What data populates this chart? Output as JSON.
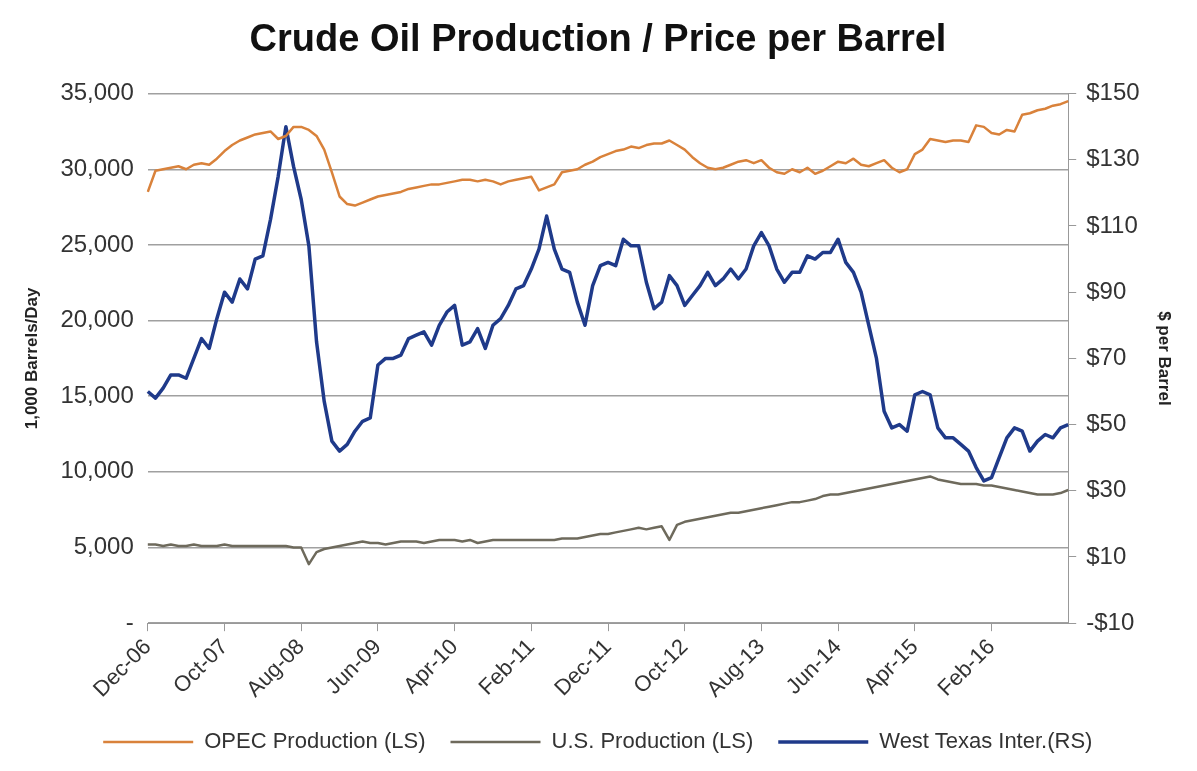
{
  "chart_data": {
    "type": "line",
    "title": "Crude Oil Production / Price per Barrel",
    "ylabel": "1,000 Barrels/Day",
    "y2label": "$ per Barrel",
    "categories": [
      "Dec-06",
      null,
      null,
      null,
      null,
      null,
      null,
      null,
      null,
      null,
      "Oct-07",
      null,
      null,
      null,
      null,
      null,
      null,
      null,
      null,
      null,
      "Aug-08",
      null,
      null,
      null,
      null,
      null,
      null,
      null,
      null,
      null,
      "Jun-09",
      null,
      null,
      null,
      null,
      null,
      null,
      null,
      null,
      null,
      "Apr-10",
      null,
      null,
      null,
      null,
      null,
      null,
      null,
      null,
      null,
      "Feb-11",
      null,
      null,
      null,
      null,
      null,
      null,
      null,
      null,
      null,
      "Dec-11",
      null,
      null,
      null,
      null,
      null,
      null,
      null,
      null,
      null,
      "Oct-12",
      null,
      null,
      null,
      null,
      null,
      null,
      null,
      null,
      null,
      "Aug-13",
      null,
      null,
      null,
      null,
      null,
      null,
      null,
      null,
      null,
      "Jun-14",
      null,
      null,
      null,
      null,
      null,
      null,
      null,
      null,
      null,
      "Apr-15",
      null,
      null,
      null,
      null,
      null,
      null,
      null,
      null,
      null,
      "Feb-16",
      null,
      null,
      null,
      null,
      null,
      null,
      null,
      null,
      null,
      null
    ],
    "series": [
      {
        "name": "OPEC Production (LS)",
        "color": "#d9823b",
        "values": [
          28500,
          29900,
          30000,
          30100,
          30200,
          30000,
          30300,
          30400,
          30300,
          30700,
          31200,
          31600,
          31900,
          32100,
          32300,
          32400,
          32500,
          32000,
          32200,
          32800,
          32800,
          32600,
          32200,
          31300,
          29800,
          28200,
          27700,
          27600,
          27800,
          28000,
          28200,
          28300,
          28400,
          28500,
          28700,
          28800,
          28900,
          29000,
          29000,
          29100,
          29200,
          29300,
          29300,
          29200,
          29300,
          29200,
          29000,
          29200,
          29300,
          29400,
          29500,
          28600,
          28800,
          29000,
          29800,
          29900,
          30000,
          30300,
          30500,
          30800,
          31000,
          31200,
          31300,
          31500,
          31400,
          31600,
          31700,
          31700,
          31900,
          31600,
          31300,
          30800,
          30400,
          30100,
          30000,
          30100,
          30300,
          30500,
          30600,
          30400,
          30600,
          30100,
          29800,
          29700,
          30000,
          29800,
          30100,
          29700,
          29900,
          30200,
          30500,
          30400,
          30700,
          30300,
          30200,
          30400,
          30600,
          30100,
          29800,
          30000,
          31000,
          31300,
          32000,
          31900,
          31800,
          31900,
          31900,
          31800,
          32900,
          32800,
          32400,
          32300,
          32600,
          32500,
          33600,
          33700,
          33900,
          34000,
          34200,
          34300,
          34500
        ]
      },
      {
        "name": "U.S. Production (LS)",
        "color": "#6e6a5c",
        "values": [
          5200,
          5200,
          5100,
          5200,
          5100,
          5100,
          5200,
          5100,
          5100,
          5100,
          5200,
          5100,
          5100,
          5100,
          5100,
          5100,
          5100,
          5100,
          5100,
          5000,
          5000,
          3900,
          4700,
          4900,
          5000,
          5100,
          5200,
          5300,
          5400,
          5300,
          5300,
          5200,
          5300,
          5400,
          5400,
          5400,
          5300,
          5400,
          5500,
          5500,
          5500,
          5400,
          5500,
          5300,
          5400,
          5500,
          5500,
          5500,
          5500,
          5500,
          5500,
          5500,
          5500,
          5500,
          5600,
          5600,
          5600,
          5700,
          5800,
          5900,
          5900,
          6000,
          6100,
          6200,
          6300,
          6200,
          6300,
          6400,
          5500,
          6500,
          6700,
          6800,
          6900,
          7000,
          7100,
          7200,
          7300,
          7300,
          7400,
          7500,
          7600,
          7700,
          7800,
          7900,
          8000,
          8000,
          8100,
          8200,
          8400,
          8500,
          8500,
          8600,
          8700,
          8800,
          8900,
          9000,
          9100,
          9200,
          9300,
          9400,
          9500,
          9600,
          9700,
          9500,
          9400,
          9300,
          9200,
          9200,
          9200,
          9100,
          9100,
          9000,
          8900,
          8800,
          8700,
          8600,
          8500,
          8500,
          8500,
          8600,
          8800
        ]
      },
      {
        "name": "West Texas Inter.(RS)",
        "color": "#1f3a8a",
        "axis": "y2",
        "values": [
          60,
          58,
          61,
          65,
          65,
          64,
          70,
          76,
          73,
          82,
          90,
          87,
          94,
          91,
          100,
          101,
          112,
          125,
          140,
          128,
          118,
          104,
          75,
          57,
          45,
          42,
          44,
          48,
          51,
          52,
          68,
          70,
          70,
          71,
          76,
          77,
          78,
          74,
          80,
          84,
          86,
          74,
          75,
          79,
          73,
          80,
          82,
          86,
          91,
          92,
          97,
          103,
          113,
          103,
          97,
          96,
          87,
          80,
          92,
          98,
          99,
          98,
          106,
          104,
          104,
          93,
          85,
          87,
          95,
          92,
          86,
          89,
          92,
          96,
          92,
          94,
          97,
          94,
          97,
          104,
          108,
          104,
          97,
          93,
          96,
          96,
          101,
          100,
          102,
          102,
          106,
          99,
          96,
          90,
          80,
          70,
          54,
          49,
          50,
          48,
          59,
          60,
          59,
          49,
          46,
          46,
          44,
          42,
          37,
          33,
          34,
          40,
          46,
          49,
          48,
          42,
          45,
          47,
          46,
          49,
          50
        ]
      }
    ],
    "ylim": [
      0,
      35000
    ],
    "yticks": [
      {
        "value": 0,
        "label": "-"
      },
      {
        "value": 5000,
        "label": "5,000"
      },
      {
        "value": 10000,
        "label": "10,000"
      },
      {
        "value": 15000,
        "label": "15,000"
      },
      {
        "value": 20000,
        "label": "20,000"
      },
      {
        "value": 25000,
        "label": "25,000"
      },
      {
        "value": 30000,
        "label": "30,000"
      },
      {
        "value": 35000,
        "label": "35,000"
      }
    ],
    "y2lim": [
      -10,
      150
    ],
    "y2ticks": [
      {
        "value": -10,
        "label": "-$10"
      },
      {
        "value": 10,
        "label": "$10"
      },
      {
        "value": 30,
        "label": "$30"
      },
      {
        "value": 50,
        "label": "$50"
      },
      {
        "value": 70,
        "label": "$70"
      },
      {
        "value": 90,
        "label": "$90"
      },
      {
        "value": 110,
        "label": "$110"
      },
      {
        "value": 130,
        "label": "$130"
      },
      {
        "value": 150,
        "label": "$150"
      }
    ],
    "grid": "y",
    "legend": "bottom",
    "marker": "none",
    "line_style": "solid"
  }
}
